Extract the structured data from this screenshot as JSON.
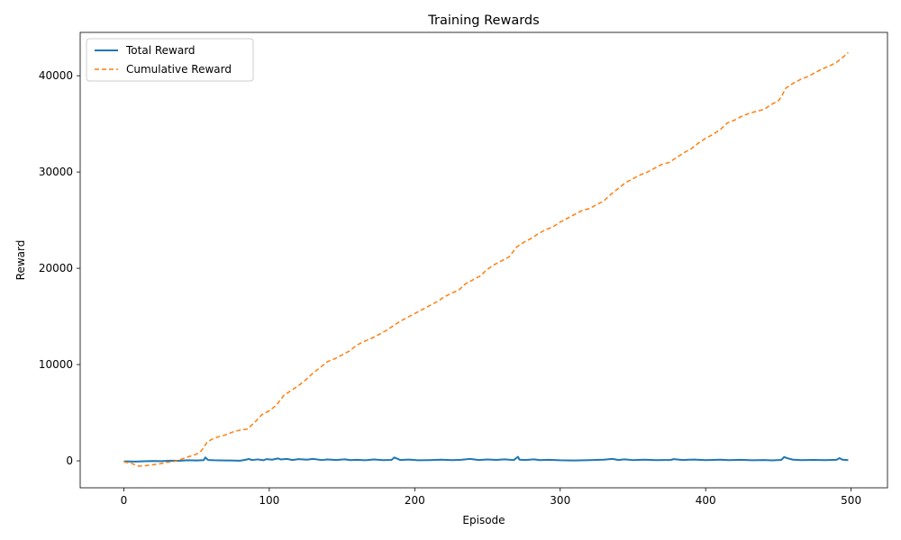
{
  "chart_data": {
    "type": "line",
    "title": "Training Rewards",
    "xlabel": "Episode",
    "ylabel": "Reward",
    "xlim": [
      -30,
      525
    ],
    "ylim": [
      -2800,
      44500
    ],
    "xticks": [
      0,
      100,
      200,
      300,
      400,
      500
    ],
    "yticks": [
      0,
      10000,
      20000,
      30000,
      40000
    ],
    "grid": false,
    "legend_position": "upper-left",
    "series": [
      {
        "name": "Total Reward",
        "color": "#1f77b4",
        "style": "solid",
        "x": [
          0,
          8,
          14,
          20,
          26,
          32,
          38,
          44,
          50,
          55,
          56,
          58,
          62,
          70,
          80,
          84,
          86,
          88,
          92,
          96,
          98,
          102,
          106,
          108,
          112,
          116,
          120,
          126,
          130,
          136,
          140,
          146,
          152,
          156,
          160,
          166,
          172,
          178,
          184,
          186,
          190,
          196,
          202,
          210,
          218,
          226,
          232,
          238,
          244,
          250,
          256,
          262,
          268,
          271,
          272,
          276,
          282,
          286,
          292,
          300,
          310,
          320,
          330,
          336,
          340,
          344,
          350,
          358,
          366,
          376,
          378,
          384,
          392,
          400,
          410,
          416,
          424,
          432,
          440,
          446,
          452,
          454,
          456,
          460,
          466,
          474,
          482,
          490,
          492,
          494,
          498
        ],
        "values": [
          -50,
          -80,
          -40,
          -20,
          -30,
          20,
          10,
          60,
          40,
          80,
          350,
          90,
          60,
          40,
          20,
          120,
          200,
          80,
          150,
          60,
          180,
          120,
          250,
          140,
          200,
          90,
          180,
          120,
          200,
          80,
          140,
          90,
          160,
          70,
          110,
          60,
          140,
          80,
          100,
          350,
          90,
          130,
          60,
          80,
          120,
          70,
          110,
          200,
          90,
          150,
          100,
          160,
          80,
          420,
          120,
          90,
          160,
          70,
          110,
          60,
          40,
          80,
          120,
          200,
          90,
          160,
          80,
          120,
          70,
          100,
          180,
          90,
          130,
          80,
          120,
          70,
          110,
          60,
          90,
          50,
          100,
          400,
          280,
          120,
          80,
          100,
          70,
          110,
          280,
          120,
          80
        ]
      },
      {
        "name": "Cumulative Reward",
        "color": "#ff7f0e",
        "style": "dashed",
        "x": [
          0,
          5,
          10,
          15,
          20,
          25,
          30,
          35,
          40,
          45,
          50,
          53,
          55,
          57,
          60,
          65,
          70,
          75,
          80,
          85,
          90,
          95,
          100,
          105,
          110,
          115,
          120,
          125,
          130,
          135,
          140,
          145,
          150,
          155,
          160,
          165,
          170,
          175,
          180,
          185,
          190,
          195,
          200,
          205,
          210,
          215,
          220,
          225,
          230,
          235,
          240,
          245,
          250,
          255,
          260,
          265,
          270,
          275,
          280,
          285,
          290,
          295,
          300,
          305,
          310,
          315,
          320,
          325,
          330,
          335,
          340,
          345,
          350,
          355,
          360,
          365,
          370,
          375,
          380,
          385,
          390,
          395,
          400,
          405,
          410,
          415,
          420,
          425,
          430,
          435,
          440,
          445,
          450,
          452,
          455,
          458,
          460,
          465,
          470,
          475,
          480,
          485,
          490,
          495,
          498
        ],
        "values": [
          -100,
          -250,
          -550,
          -500,
          -400,
          -300,
          -150,
          -50,
          200,
          450,
          700,
          1000,
          1400,
          1900,
          2200,
          2500,
          2700,
          3000,
          3200,
          3300,
          4000,
          4800,
          5200,
          5800,
          6800,
          7300,
          7800,
          8400,
          9100,
          9700,
          10300,
          10600,
          11000,
          11400,
          12000,
          12400,
          12700,
          13100,
          13500,
          14000,
          14500,
          14900,
          15300,
          15700,
          16100,
          16500,
          17000,
          17400,
          17700,
          18400,
          18800,
          19200,
          19900,
          20400,
          20800,
          21200,
          22200,
          22700,
          23100,
          23600,
          24000,
          24300,
          24800,
          25200,
          25600,
          26000,
          26200,
          26600,
          27000,
          27700,
          28300,
          28900,
          29300,
          29700,
          30000,
          30400,
          30800,
          31000,
          31500,
          32000,
          32400,
          33000,
          33500,
          33900,
          34400,
          35100,
          35400,
          35800,
          36100,
          36300,
          36500,
          37000,
          37400,
          37800,
          38700,
          39000,
          39200,
          39600,
          39900,
          40300,
          40700,
          41000,
          41400,
          42000,
          42400
        ]
      }
    ]
  }
}
